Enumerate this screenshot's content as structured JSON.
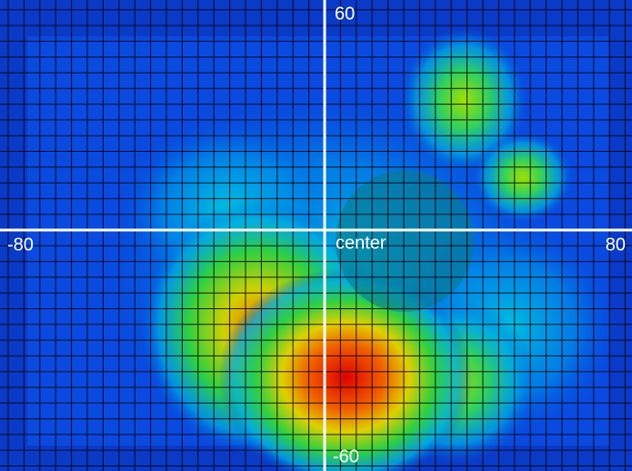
{
  "labels": {
    "top": "60",
    "left": "-80",
    "center": "center",
    "right": "80",
    "bottom": "-60"
  }
}
